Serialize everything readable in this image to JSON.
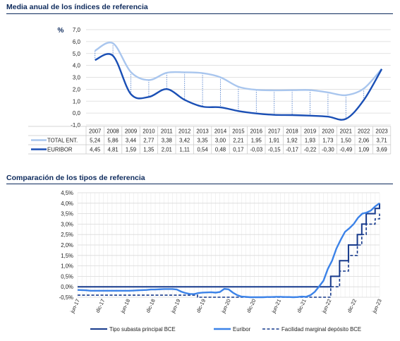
{
  "colors": {
    "title": "#0d2a5c",
    "total_ent": "#a9c6ee",
    "euribor_top": "#1a4fb5",
    "bce": "#173a8c",
    "euribor_bottom": "#3b82e8",
    "grid": "#d9d9d9",
    "drop_line": "#3f72c7"
  },
  "top": {
    "title": "Media anual de los índices de referencia",
    "unit": "%"
  },
  "bottom": {
    "title": "Comparación de los tipos de referencia"
  },
  "chart_data": [
    {
      "type": "line",
      "title": "Media anual de los índices de referencia",
      "ylabel": "%",
      "ylim": [
        -1.0,
        7.0
      ],
      "yticks": [
        "7,0",
        "6,0",
        "5,0",
        "4,0",
        "3,0",
        "2,0",
        "1,0",
        "0,0",
        "-1,0"
      ],
      "categories": [
        "2007",
        "2008",
        "2009",
        "2010",
        "2011",
        "2012",
        "2013",
        "2014",
        "2015",
        "2016",
        "2017",
        "2018",
        "2019",
        "2020",
        "2021",
        "2022",
        "2023"
      ],
      "series": [
        {
          "name": "TOTAL ENT.",
          "values": [
            5.24,
            5.86,
            3.44,
            2.77,
            3.38,
            3.42,
            3.35,
            3.0,
            2.21,
            1.95,
            1.91,
            1.92,
            1.93,
            1.73,
            1.5,
            2.06,
            3.71
          ],
          "labels": [
            "5,24",
            "5,86",
            "3,44",
            "2,77",
            "3,38",
            "3,42",
            "3,35",
            "3,00",
            "2,21",
            "1,95",
            "1,91",
            "1,92",
            "1,93",
            "1,73",
            "1,50",
            "2,06",
            "3,71"
          ]
        },
        {
          "name": "EURIBOR",
          "values": [
            4.45,
            4.81,
            1.59,
            1.35,
            2.01,
            1.11,
            0.54,
            0.48,
            0.17,
            -0.03,
            -0.15,
            -0.17,
            -0.22,
            -0.3,
            -0.49,
            1.09,
            3.69
          ],
          "labels": [
            "4,45",
            "4,81",
            "1,59",
            "1,35",
            "2,01",
            "1,11",
            "0,54",
            "0,48",
            "0,17",
            "-0,03",
            "-0,15",
            "-0,17",
            "-0,22",
            "-0,30",
            "-0,49",
            "1,09",
            "3,69"
          ]
        }
      ],
      "grid": true,
      "legend": "table-below"
    },
    {
      "type": "line",
      "title": "Comparación de los tipos de referencia",
      "ylim": [
        -0.5,
        4.5
      ],
      "yticks": [
        "4,5%",
        "4,0%",
        "3,5%",
        "3,0%",
        "2,5%",
        "2,0%",
        "1,5%",
        "1,0%",
        "0,5%",
        "0,0%",
        "-0,5%"
      ],
      "x_labels": [
        "jun-17",
        "dic-17",
        "jun-18",
        "dic-18",
        "jun-19",
        "dic-19",
        "jun-20",
        "dic-20",
        "jun-21",
        "dic-21",
        "jun-22",
        "dic-22",
        "jun-23"
      ],
      "series": [
        {
          "name": "Tipo subasta principal BCE",
          "values": [
            0,
            0,
            0,
            0,
            0,
            0,
            0,
            0,
            0,
            0,
            0,
            0,
            0,
            0,
            0,
            0,
            0,
            0,
            0,
            0,
            0,
            0,
            0,
            0,
            0,
            0,
            0,
            0,
            0,
            0,
            0,
            0,
            0,
            0,
            0,
            0,
            0,
            0,
            0,
            0,
            0,
            0,
            0,
            0,
            0,
            0,
            0,
            0,
            0,
            0,
            0,
            0,
            0,
            0,
            0,
            0,
            0,
            0.5,
            0.5,
            1.25,
            1.25,
            2.0,
            2.0,
            2.5,
            3.0,
            3.5,
            3.5,
            3.75,
            4.0
          ]
        },
        {
          "name": "Euribor",
          "values": [
            -0.15,
            -0.16,
            -0.17,
            -0.19,
            -0.19,
            -0.19,
            -0.19,
            -0.19,
            -0.19,
            -0.19,
            -0.19,
            -0.19,
            -0.19,
            -0.18,
            -0.17,
            -0.16,
            -0.15,
            -0.13,
            -0.13,
            -0.12,
            -0.11,
            -0.11,
            -0.11,
            -0.13,
            -0.23,
            -0.3,
            -0.34,
            -0.35,
            -0.3,
            -0.28,
            -0.27,
            -0.26,
            -0.28,
            -0.25,
            -0.1,
            -0.12,
            -0.28,
            -0.4,
            -0.47,
            -0.48,
            -0.5,
            -0.5,
            -0.5,
            -0.5,
            -0.49,
            -0.49,
            -0.48,
            -0.48,
            -0.49,
            -0.49,
            -0.5,
            -0.49,
            -0.47,
            -0.48,
            -0.4,
            -0.24,
            0.02,
            0.29,
            0.85,
            1.25,
            1.83,
            2.25,
            2.63,
            2.8,
            3.0,
            3.3,
            3.5,
            3.55,
            3.65,
            3.85,
            4.0
          ]
        },
        {
          "name": "Facilidad marginal depósito BCE",
          "values": [
            -0.4,
            -0.4,
            -0.4,
            -0.4,
            -0.4,
            -0.4,
            -0.4,
            -0.4,
            -0.4,
            -0.4,
            -0.4,
            -0.4,
            -0.4,
            -0.4,
            -0.4,
            -0.4,
            -0.4,
            -0.4,
            -0.4,
            -0.4,
            -0.4,
            -0.4,
            -0.4,
            -0.4,
            -0.4,
            -0.4,
            -0.4,
            -0.5,
            -0.5,
            -0.5,
            -0.5,
            -0.5,
            -0.5,
            -0.5,
            -0.5,
            -0.5,
            -0.5,
            -0.5,
            -0.5,
            -0.5,
            -0.5,
            -0.5,
            -0.5,
            -0.5,
            -0.5,
            -0.5,
            -0.5,
            -0.5,
            -0.5,
            -0.5,
            -0.5,
            -0.5,
            -0.5,
            -0.5,
            -0.5,
            -0.5,
            -0.5,
            0.0,
            0.0,
            0.75,
            0.75,
            1.5,
            1.5,
            2.0,
            2.5,
            3.0,
            3.0,
            3.25,
            3.5
          ]
        }
      ],
      "grid": true,
      "legend": "bottom"
    }
  ]
}
